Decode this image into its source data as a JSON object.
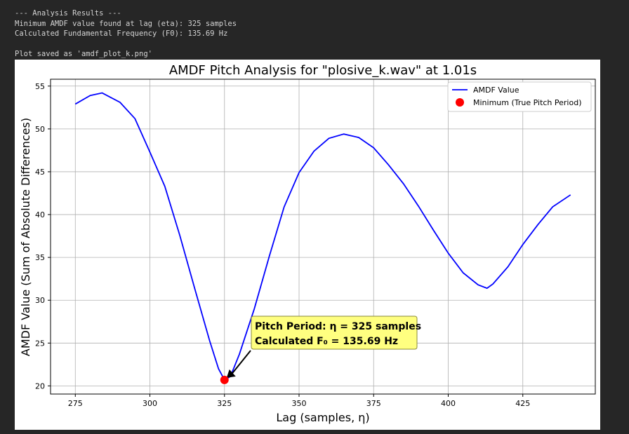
{
  "console": [
    "--- Analysis Results ---",
    "Minimum AMDF value found at lag (eta): 325 samples",
    "Calculated Fundamental Frequency (F0): 135.69 Hz",
    "Plot saved as 'amdf_plot_k.png'"
  ],
  "chart_data": {
    "type": "line",
    "title": "AMDF Pitch Analysis for \"plosive_k.wav\" at 1.01s",
    "x_label": "Lag (samples, η)",
    "y_label": "AMDF Value (Sum of Absolute Differences)",
    "x": [
      275,
      280,
      284,
      290,
      295,
      300,
      305,
      310,
      315,
      320,
      323,
      325,
      327,
      330,
      335,
      340,
      345,
      350,
      355,
      360,
      365,
      370,
      375,
      380,
      385,
      390,
      395,
      400,
      405,
      410,
      413,
      415,
      420,
      425,
      430,
      435,
      441
    ],
    "series": [
      {
        "name": "AMDF Value",
        "color": "#0000ff",
        "values": [
          52.9,
          53.9,
          54.2,
          53.1,
          51.2,
          47.3,
          43.3,
          37.6,
          31.4,
          25.3,
          22.0,
          20.7,
          21.1,
          23.7,
          29.0,
          35.1,
          40.9,
          44.9,
          47.4,
          48.9,
          49.4,
          49.0,
          47.8,
          45.8,
          43.6,
          41.0,
          38.2,
          35.5,
          33.2,
          31.8,
          31.4,
          31.9,
          33.9,
          36.5,
          38.8,
          40.9,
          42.3
        ]
      }
    ],
    "points": [
      {
        "name": "Minimum (True Pitch Period)",
        "color": "#ff0000",
        "x": 325,
        "y": 20.7
      }
    ],
    "annotation": [
      "Pitch Period: η = 325 samples",
      "Calculated F₀ = 135.69 Hz"
    ],
    "xlim": [
      266.7,
      449.3
    ],
    "ylim": [
      19.05,
      55.8
    ],
    "xticks": [
      275,
      300,
      325,
      350,
      375,
      400,
      425
    ],
    "yticks": [
      20,
      25,
      30,
      35,
      40,
      45,
      50,
      55
    ],
    "grid": true,
    "legend": "upper right"
  }
}
